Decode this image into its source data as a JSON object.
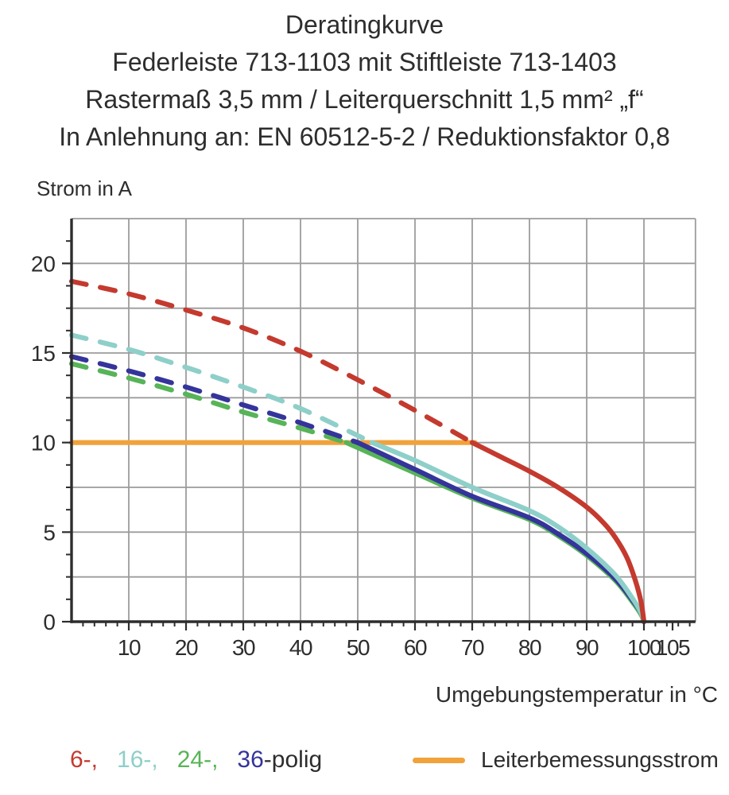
{
  "title": {
    "line1": "Deratingkurve",
    "line2": "Federleiste 713-1103 mit Stiftleiste 713-1403",
    "line3": "Rastermaß 3,5 mm / Leiterquerschnitt 1,5 mm² „f“",
    "line4": "In Anlehnung an: EN 60512-5-2 / Reduktionsfaktor 0,8"
  },
  "chart_data": {
    "type": "line",
    "ylabel": "Strom in A",
    "xlabel": "Umgebungstemperatur in °C",
    "xlim": [
      0,
      109
    ],
    "ylim": [
      0,
      22.5
    ],
    "x_major_ticks": [
      10,
      20,
      30,
      40,
      50,
      60,
      70,
      80,
      90,
      100,
      105
    ],
    "y_major_ticks": [
      0,
      5,
      10,
      15,
      20
    ],
    "x_gridline_step": 10,
    "y_gridline_step": 2.5,
    "x_minor_tick_step": 2,
    "y_minor_tick_step": 1.25,
    "grid_on": true,
    "grid_color": "#9c9c9c",
    "axis_color": "#2d2d2d",
    "series": [
      {
        "name": "Leiterbemessungsstrom",
        "color": "#f1a23a",
        "style": "solid",
        "dash_until_x": 0,
        "points": [
          [
            0,
            10
          ],
          [
            70.5,
            10
          ]
        ]
      },
      {
        "name": "24-polig",
        "color": "#57b457",
        "style": "dashed-then-solid",
        "dash_until_x": 48,
        "points": [
          [
            0,
            14.4
          ],
          [
            10,
            13.6
          ],
          [
            20,
            12.7
          ],
          [
            30,
            11.7
          ],
          [
            40,
            10.8
          ],
          [
            48,
            10
          ],
          [
            60,
            8.3
          ],
          [
            70,
            6.9
          ],
          [
            80,
            5.7
          ],
          [
            85,
            4.8
          ],
          [
            90,
            3.7
          ],
          [
            95,
            2.3
          ],
          [
            98,
            1.1
          ],
          [
            99.5,
            0.4
          ],
          [
            100,
            0
          ]
        ]
      },
      {
        "name": "36-polig",
        "color": "#34349b",
        "style": "dashed-then-solid",
        "dash_until_x": 50,
        "points": [
          [
            0,
            14.8
          ],
          [
            10,
            14.0
          ],
          [
            20,
            13.1
          ],
          [
            30,
            12.1
          ],
          [
            40,
            11.1
          ],
          [
            50,
            10
          ],
          [
            60,
            8.5
          ],
          [
            70,
            7.0
          ],
          [
            80,
            5.8
          ],
          [
            85,
            4.9
          ],
          [
            90,
            3.8
          ],
          [
            95,
            2.4
          ],
          [
            98,
            1.2
          ],
          [
            99.5,
            0.5
          ],
          [
            100,
            0
          ]
        ]
      },
      {
        "name": "16-polig",
        "color": "#8ecfc9",
        "style": "dashed-then-solid",
        "dash_until_x": 52.5,
        "points": [
          [
            0,
            16
          ],
          [
            10,
            15.2
          ],
          [
            20,
            14.2
          ],
          [
            30,
            13.1
          ],
          [
            40,
            11.9
          ],
          [
            52.5,
            10
          ],
          [
            60,
            9.0
          ],
          [
            70,
            7.5
          ],
          [
            80,
            6.2
          ],
          [
            85,
            5.3
          ],
          [
            90,
            4.1
          ],
          [
            95,
            2.6
          ],
          [
            98,
            1.3
          ],
          [
            99.5,
            0.5
          ],
          [
            100,
            0
          ]
        ]
      },
      {
        "name": "6-polig",
        "color": "#c43a2e",
        "style": "dashed-then-solid",
        "dash_until_x": 70,
        "points": [
          [
            0,
            19
          ],
          [
            10,
            18.3
          ],
          [
            20,
            17.4
          ],
          [
            30,
            16.4
          ],
          [
            40,
            15.1
          ],
          [
            50,
            13.5
          ],
          [
            60,
            11.8
          ],
          [
            70,
            10
          ],
          [
            75,
            9.2
          ],
          [
            80,
            8.4
          ],
          [
            85,
            7.5
          ],
          [
            90,
            6.4
          ],
          [
            93,
            5.5
          ],
          [
            95,
            4.7
          ],
          [
            97,
            3.6
          ],
          [
            98.5,
            2.3
          ],
          [
            99.5,
            1.1
          ],
          [
            100,
            0
          ]
        ]
      }
    ],
    "legend_left": [
      {
        "label": "6-,",
        "color": "#c43a2e"
      },
      {
        "label": "16-,",
        "color": "#8ecfc9"
      },
      {
        "label": "24-,",
        "color": "#57b457"
      },
      {
        "label": "36",
        "color": "#34349b"
      },
      {
        "label": "-polig",
        "color": "#2d2d2d"
      }
    ],
    "legend_right": {
      "label": "Leiterbemessungsstrom",
      "color": "#f1a23a"
    },
    "legend_position": "bottom"
  }
}
